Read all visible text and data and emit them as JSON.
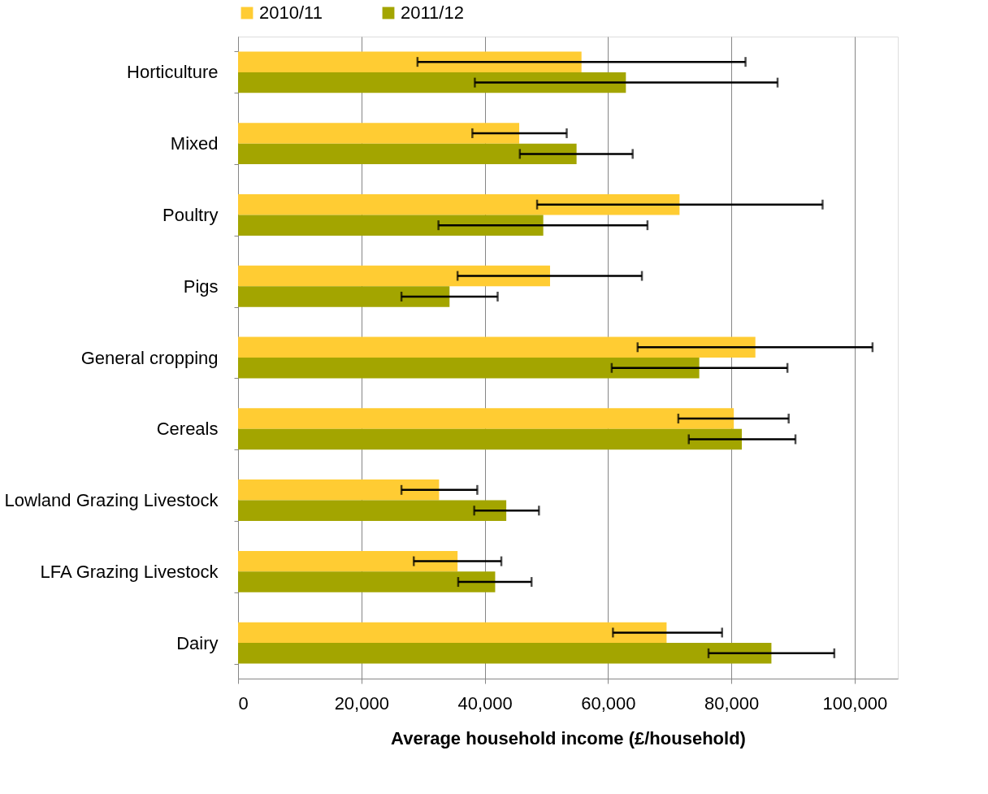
{
  "chart_data": {
    "type": "bar",
    "orientation": "horizontal",
    "xlabel": "Average household income (£/household)",
    "categories": [
      "Horticulture",
      "Mixed",
      "Poultry",
      "Pigs",
      "General cropping",
      "Cereals",
      "Lowland Grazing Livestock",
      "LFA Grazing Livestock",
      "Dairy"
    ],
    "series": [
      {
        "name": "2010/11",
        "color": "#ffcc33",
        "values": [
          55700,
          45600,
          71600,
          50600,
          83900,
          80400,
          32600,
          35600,
          69500
        ],
        "errors": [
          [
            29100,
            82300
          ],
          [
            38000,
            53300
          ],
          [
            48500,
            94800
          ],
          [
            35600,
            65500
          ],
          [
            64800,
            102900
          ],
          [
            71400,
            89300
          ],
          [
            26500,
            38800
          ],
          [
            28500,
            42700
          ],
          [
            60800,
            78500
          ]
        ]
      },
      {
        "name": "2011/12",
        "color": "#a3a500",
        "values": [
          62900,
          54900,
          49500,
          34300,
          74800,
          81700,
          43500,
          41700,
          86500
        ],
        "errors": [
          [
            38400,
            87500
          ],
          [
            45700,
            64000
          ],
          [
            32500,
            66400
          ],
          [
            26500,
            42100
          ],
          [
            60600,
            89100
          ],
          [
            73100,
            90400
          ],
          [
            38300,
            48800
          ],
          [
            35700,
            47600
          ],
          [
            76300,
            96700
          ]
        ]
      }
    ],
    "xlim": [
      0,
      107000
    ],
    "xticks": [
      0,
      {
        "value": 20000,
        "label": "20,000"
      },
      {
        "value": 40000,
        "label": "40,000"
      },
      {
        "value": 60000,
        "label": "60,000"
      },
      {
        "value": 80000,
        "label": "80,000"
      },
      {
        "value": 100000,
        "label": "100,000"
      }
    ],
    "grid": "x",
    "legend": "top"
  }
}
